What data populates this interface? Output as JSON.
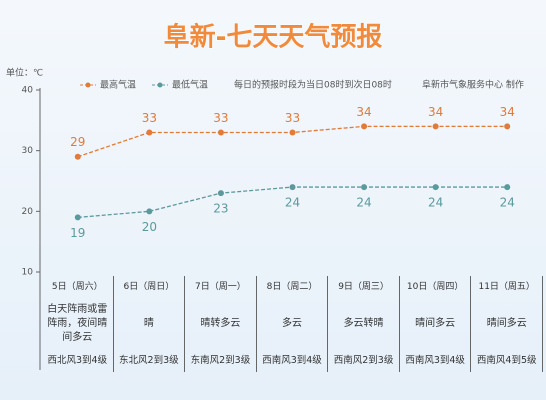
{
  "chart_data": {
    "type": "line",
    "title": "阜新-七天天气预报",
    "unit_label": "单位：℃",
    "note": "每日的预报时段为当日08时到次日08时",
    "credit": "阜新市气象服务中心 制作",
    "categories": [
      "5日（周六）",
      "6日（周日）",
      "7日（周一）",
      "8日（周二）",
      "9日（周三）",
      "10日（周四）",
      "11日（周五）"
    ],
    "series": [
      {
        "name": "最高气温",
        "color": "#e07b39",
        "values": [
          29,
          33,
          33,
          33,
          34,
          34,
          34
        ]
      },
      {
        "name": "最低气温",
        "color": "#5b9a9c",
        "values": [
          19,
          20,
          23,
          24,
          24,
          24,
          24
        ]
      }
    ],
    "ylim": [
      10,
      40
    ],
    "yticks": [
      10,
      20,
      30,
      40
    ]
  },
  "table": {
    "weather": [
      "白天阵雨或雷阵雨，夜间晴间多云",
      "晴",
      "晴转多云",
      "多云",
      "多云转晴",
      "晴间多云",
      "晴间多云"
    ],
    "wind": [
      "西北风3到4级",
      "东北风2到3级",
      "东南风2到3级",
      "西南风3到4级",
      "西南风2到3级",
      "西南风3到4级",
      "西南风4到5级"
    ]
  }
}
